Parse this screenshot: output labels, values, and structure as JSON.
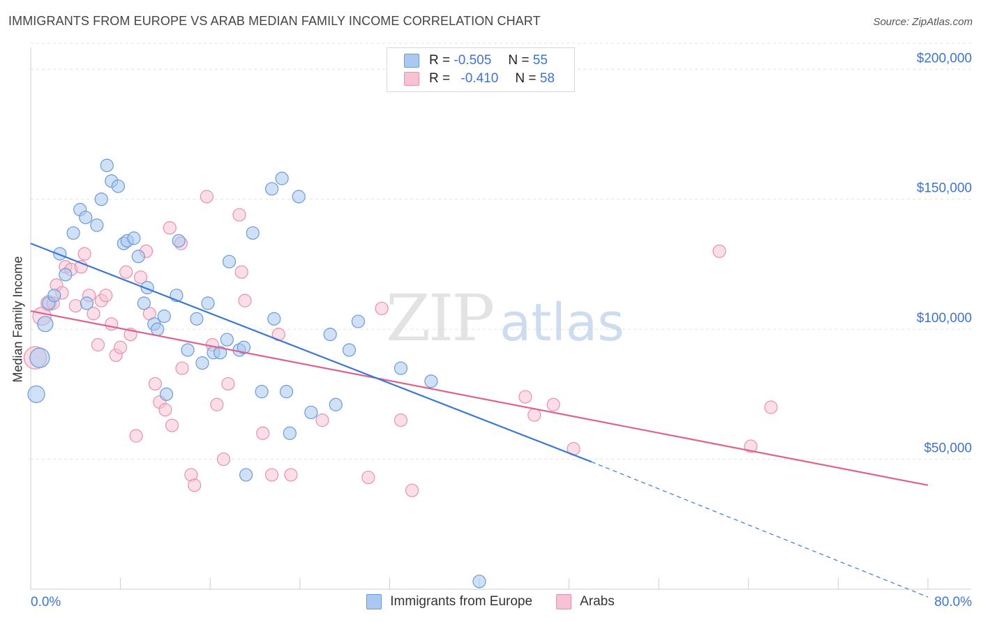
{
  "header": {
    "title": "IMMIGRANTS FROM EUROPE VS ARAB MEDIAN FAMILY INCOME CORRELATION CHART",
    "source": "Source: ZipAtlas.com"
  },
  "legend": {
    "rows": [
      {
        "r_label": "R =",
        "r_value": "-0.505",
        "n_label": "N =",
        "n_value": "55"
      },
      {
        "r_label": "R =",
        "r_value": "-0.410",
        "n_label": "N =",
        "n_value": "58"
      }
    ]
  },
  "watermark": {
    "zip": "ZIP",
    "atlas": "atlas"
  },
  "colors": {
    "blue_fill": "#aac8f0",
    "blue_stroke": "#6a9ad8",
    "blue_line": "#3a78d4",
    "pink_fill": "#f7c2d3",
    "pink_stroke": "#e890ae",
    "pink_line": "#e0608e",
    "tick_text": "#3c74d0"
  },
  "chart_data": {
    "type": "scatter",
    "ylabel": "Median Family Income",
    "xlim": [
      0,
      80
    ],
    "ylim": [
      0,
      210000
    ],
    "x_tick_labels": [
      "0.0%",
      "80.0%"
    ],
    "y_ticks": [
      50000,
      100000,
      150000,
      200000
    ],
    "y_tick_labels": [
      "$50,000",
      "$100,000",
      "$150,000",
      "$200,000"
    ],
    "grid": true,
    "legend_position": "bottom",
    "series": [
      {
        "name": "Immigrants from Europe",
        "color": "#aac8f0",
        "trend": {
          "x": [
            0,
            50
          ],
          "y": [
            133000,
            49000
          ],
          "dashed_to": [
            80,
            -3000
          ]
        },
        "points": [
          [
            0.5,
            75000,
            12
          ],
          [
            0.8,
            89000,
            14
          ],
          [
            1.3,
            102000,
            11
          ],
          [
            1.6,
            110000,
            9
          ],
          [
            2.1,
            113000,
            9
          ],
          [
            2.6,
            129000,
            9
          ],
          [
            3.1,
            121000,
            9
          ],
          [
            3.8,
            137000,
            9
          ],
          [
            4.4,
            146000,
            9
          ],
          [
            4.9,
            143000,
            9
          ],
          [
            5.0,
            110000,
            9
          ],
          [
            5.9,
            140000,
            9
          ],
          [
            6.3,
            150000,
            9
          ],
          [
            6.8,
            163000,
            9
          ],
          [
            7.2,
            157000,
            9
          ],
          [
            7.8,
            155000,
            9
          ],
          [
            8.3,
            133000,
            9
          ],
          [
            8.6,
            134000,
            9
          ],
          [
            9.2,
            135000,
            9
          ],
          [
            9.6,
            128000,
            9
          ],
          [
            10.1,
            110000,
            9
          ],
          [
            10.4,
            116000,
            9
          ],
          [
            11.0,
            102000,
            9
          ],
          [
            11.3,
            100000,
            9
          ],
          [
            11.9,
            105000,
            9
          ],
          [
            12.1,
            75000,
            9
          ],
          [
            13.0,
            113000,
            9
          ],
          [
            13.2,
            134000,
            9
          ],
          [
            14.0,
            92000,
            9
          ],
          [
            14.8,
            104000,
            9
          ],
          [
            15.3,
            87000,
            9
          ],
          [
            15.8,
            110000,
            9
          ],
          [
            16.3,
            91000,
            9
          ],
          [
            16.9,
            91000,
            9
          ],
          [
            17.5,
            96000,
            9
          ],
          [
            17.7,
            126000,
            9
          ],
          [
            18.6,
            92000,
            9
          ],
          [
            19.0,
            93000,
            9
          ],
          [
            19.2,
            44000,
            9
          ],
          [
            19.8,
            137000,
            9
          ],
          [
            20.6,
            76000,
            9
          ],
          [
            21.5,
            154000,
            9
          ],
          [
            21.7,
            104000,
            9
          ],
          [
            22.4,
            158000,
            9
          ],
          [
            22.8,
            76000,
            9
          ],
          [
            23.1,
            60000,
            9
          ],
          [
            23.9,
            151000,
            9
          ],
          [
            25.0,
            68000,
            9
          ],
          [
            26.7,
            98000,
            9
          ],
          [
            27.2,
            71000,
            9
          ],
          [
            28.4,
            92000,
            9
          ],
          [
            29.2,
            103000,
            9
          ],
          [
            33.0,
            85000,
            9
          ],
          [
            35.7,
            80000,
            9
          ],
          [
            40.0,
            3000,
            9
          ]
        ]
      },
      {
        "name": "Arabs",
        "color": "#f7c2d3",
        "trend": {
          "x": [
            0,
            80
          ],
          "y": [
            107000,
            40000
          ]
        },
        "points": [
          [
            0.4,
            89000,
            16
          ],
          [
            1.0,
            105000,
            13
          ],
          [
            1.6,
            110000,
            11
          ],
          [
            2.0,
            110000,
            9
          ],
          [
            2.3,
            117000,
            9
          ],
          [
            2.8,
            114000,
            9
          ],
          [
            3.1,
            124000,
            9
          ],
          [
            3.6,
            123000,
            9
          ],
          [
            4.0,
            109000,
            9
          ],
          [
            4.5,
            124000,
            9
          ],
          [
            4.8,
            129000,
            9
          ],
          [
            5.2,
            113000,
            9
          ],
          [
            5.6,
            106000,
            9
          ],
          [
            6.0,
            94000,
            9
          ],
          [
            6.3,
            111000,
            9
          ],
          [
            6.7,
            113000,
            9
          ],
          [
            7.2,
            102000,
            9
          ],
          [
            7.6,
            90000,
            9
          ],
          [
            8.0,
            93000,
            9
          ],
          [
            8.5,
            122000,
            9
          ],
          [
            8.9,
            98000,
            9
          ],
          [
            9.4,
            59000,
            9
          ],
          [
            9.8,
            120000,
            9
          ],
          [
            10.3,
            130000,
            9
          ],
          [
            10.6,
            106000,
            9
          ],
          [
            11.1,
            79000,
            9
          ],
          [
            11.5,
            72000,
            9
          ],
          [
            12.0,
            69000,
            9
          ],
          [
            12.4,
            139000,
            9
          ],
          [
            12.6,
            63000,
            9
          ],
          [
            13.4,
            133000,
            9
          ],
          [
            13.5,
            85000,
            9
          ],
          [
            14.3,
            44000,
            9
          ],
          [
            14.6,
            40000,
            9
          ],
          [
            15.7,
            151000,
            9
          ],
          [
            16.2,
            94000,
            9
          ],
          [
            16.6,
            71000,
            9
          ],
          [
            17.2,
            50000,
            9
          ],
          [
            17.6,
            79000,
            9
          ],
          [
            18.6,
            144000,
            9
          ],
          [
            18.8,
            122000,
            9
          ],
          [
            19.1,
            111000,
            9
          ],
          [
            20.7,
            60000,
            9
          ],
          [
            21.5,
            44000,
            9
          ],
          [
            22.1,
            98000,
            9
          ],
          [
            23.2,
            44000,
            9
          ],
          [
            26.0,
            65000,
            9
          ],
          [
            30.1,
            43000,
            9
          ],
          [
            31.3,
            108000,
            9
          ],
          [
            33.0,
            65000,
            9
          ],
          [
            34.0,
            38000,
            9
          ],
          [
            44.1,
            74000,
            9
          ],
          [
            44.9,
            67000,
            9
          ],
          [
            46.6,
            71000,
            9
          ],
          [
            48.4,
            54000,
            9
          ],
          [
            61.4,
            130000,
            9
          ],
          [
            64.2,
            55000,
            9
          ],
          [
            66.0,
            70000,
            9
          ]
        ]
      }
    ]
  }
}
